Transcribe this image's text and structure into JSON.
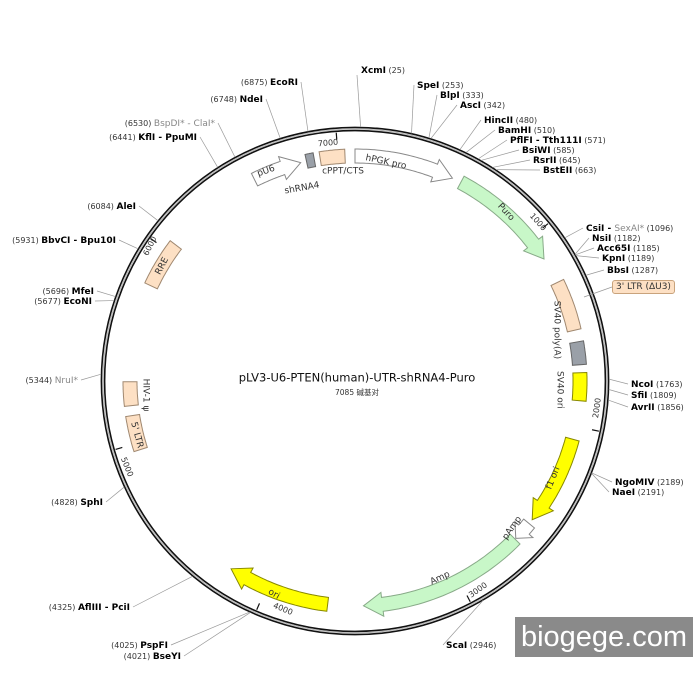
{
  "title": "pLV3-U6-PTEN(human)-UTR-shRNA4-Puro",
  "length_label": "7085 碱基对",
  "total_bp": 7085,
  "watermark": "biogege.com",
  "ticks": [
    "1000",
    "2000",
    "3000",
    "4000",
    "5000",
    "6000",
    "7000"
  ],
  "features": [
    {
      "name": "hPGK pro",
      "start": 0,
      "end": 505,
      "type": "arrow",
      "fill": "#ffffff",
      "stroke": "#888888"
    },
    {
      "name": "Puro",
      "start": 552,
      "end": 1125,
      "type": "arrow",
      "fill": "#c8f7c8",
      "stroke": "#88aa88"
    },
    {
      "name": "3' LTR (ΔU3)",
      "start": 1260,
      "end": 1515,
      "type": "box",
      "fill": "#fde0c4",
      "stroke": "#a08870"
    },
    {
      "name": "SV40 poly(A)",
      "start": 1575,
      "end": 1690,
      "type": "box",
      "fill": "#9aa0a8",
      "stroke": "#666666"
    },
    {
      "name": "SV40 ori",
      "start": 1730,
      "end": 1870,
      "type": "box",
      "fill": "#ffff00",
      "stroke": "#888800"
    },
    {
      "name": "f1 ori",
      "start": 2066,
      "end": 2520,
      "type": "arrow",
      "fill": "#ffff00",
      "stroke": "#888800"
    },
    {
      "name": "pAmp",
      "start": 2545,
      "end": 2645,
      "type": "arrow",
      "fill": "#ffffff",
      "stroke": "#888888"
    },
    {
      "name": "Amp",
      "start": 2650,
      "end": 3500,
      "type": "arrow",
      "fill": "#c8f7c8",
      "stroke": "#88aa88"
    },
    {
      "name": "ori",
      "start": 3680,
      "end": 4200,
      "type": "arrow",
      "fill": "#ffff00",
      "stroke": "#888800"
    },
    {
      "name": "5' LTR",
      "start": 4965,
      "end": 5140,
      "type": "box",
      "fill": "#fde0c4",
      "stroke": "#a08870"
    },
    {
      "name": "HIV-1 ψ",
      "start": 5190,
      "end": 5310,
      "type": "box",
      "fill": "#fde0c4",
      "stroke": "#a08870"
    },
    {
      "name": "RRE",
      "start": 5806,
      "end": 6046,
      "type": "box",
      "fill": "#fde0c4",
      "stroke": "#a08870"
    },
    {
      "name": "pU6",
      "start": 6563,
      "end": 6810,
      "type": "arrow",
      "fill": "#ffffff",
      "stroke": "#888888"
    },
    {
      "name": "shRNA4",
      "start": 6840,
      "end": 6880,
      "type": "box",
      "fill": "#9aa0a8",
      "stroke": "#666666"
    },
    {
      "name": "cPPT/CTS",
      "start": 6910,
      "end": 7035,
      "type": "box",
      "fill": "#fde0c4",
      "stroke": "#a08870"
    }
  ],
  "sites": [
    {
      "name": "XcmI",
      "pos": 25
    },
    {
      "name": "SpeI",
      "pos": 253
    },
    {
      "name": "BlpI",
      "pos": 333
    },
    {
      "name": "AscI",
      "pos": 342
    },
    {
      "name": "HincII",
      "pos": 480
    },
    {
      "name": "BamHI",
      "pos": 510
    },
    {
      "name": "PflFI - Tth111I",
      "pos": 571
    },
    {
      "name": "BsiWI",
      "pos": 585
    },
    {
      "name": "RsrII",
      "pos": 645
    },
    {
      "name": "BstEII",
      "pos": 663
    },
    {
      "name": "CsiI - ",
      "name2": "SexAI*",
      "pos": 1096
    },
    {
      "name": "NsiI",
      "pos": 1182
    },
    {
      "name": "Acc65I",
      "pos": 1185
    },
    {
      "name": "KpnI",
      "pos": 1189
    },
    {
      "name": "BbsI",
      "pos": 1287
    },
    {
      "name": "NcoI",
      "pos": 1763
    },
    {
      "name": "SfiI",
      "pos": 1809
    },
    {
      "name": "AvrII",
      "pos": 1856
    },
    {
      "name": "NgoMIV",
      "pos": 2189
    },
    {
      "name": "NaeI",
      "pos": 2191
    },
    {
      "name": "ScaI",
      "pos": 2946
    },
    {
      "name": "BseYI",
      "pos": 4021
    },
    {
      "name": "PspFI",
      "pos": 4025
    },
    {
      "name": "AflIII - PciI",
      "pos": 4325
    },
    {
      "name": "SphI",
      "pos": 4828
    },
    {
      "name": "NruI*",
      "pos": 5344,
      "nonunique": true
    },
    {
      "name": "EcoNI",
      "pos": 5677
    },
    {
      "name": "MfeI",
      "pos": 5696
    },
    {
      "name": "BbvCI - Bpu10I",
      "pos": 5931
    },
    {
      "name": "AleI",
      "pos": 6084
    },
    {
      "name": "KflI - PpuMI",
      "pos": 6441
    },
    {
      "name": "BspDI* - ClaI*",
      "pos": 6530,
      "nonunique": true
    },
    {
      "name": "NdeI",
      "pos": 6748
    },
    {
      "name": "EcoRI",
      "pos": 6875
    }
  ]
}
